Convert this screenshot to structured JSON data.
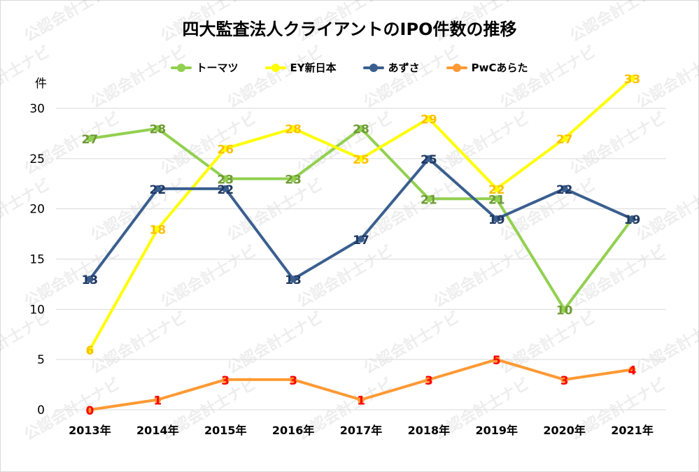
{
  "chart_data": {
    "type": "line",
    "title": "四大監査法人クライアントのIPO件数の推移",
    "ylabel": "件",
    "categories": [
      "2013年",
      "2014年",
      "2015年",
      "2016年",
      "2017年",
      "2018年",
      "2019年",
      "2020年",
      "2021年"
    ],
    "ylim": [
      0,
      30
    ],
    "yticks": [
      0,
      5,
      10,
      15,
      20,
      25,
      30
    ],
    "grid": true,
    "legend_position": "top",
    "watermark": "公認会計士ナビ",
    "series": [
      {
        "name": "トーマツ",
        "color": "#92d050",
        "label_color": "#6f9a36",
        "values": [
          27,
          28,
          23,
          23,
          28,
          21,
          21,
          10,
          19
        ]
      },
      {
        "name": "EY新日本",
        "color": "#ffff00",
        "label_color": "#ffc000",
        "values": [
          6,
          18,
          26,
          28,
          25,
          29,
          22,
          27,
          33
        ]
      },
      {
        "name": "あずさ",
        "color": "#3a5f8f",
        "label_color": "#1f3864",
        "values": [
          13,
          22,
          22,
          13,
          17,
          25,
          19,
          22,
          19
        ]
      },
      {
        "name": "PwCあらた",
        "color": "#ff9933",
        "label_color": "#ff0000",
        "values": [
          0,
          1,
          3,
          3,
          1,
          3,
          5,
          3,
          4
        ]
      }
    ]
  }
}
